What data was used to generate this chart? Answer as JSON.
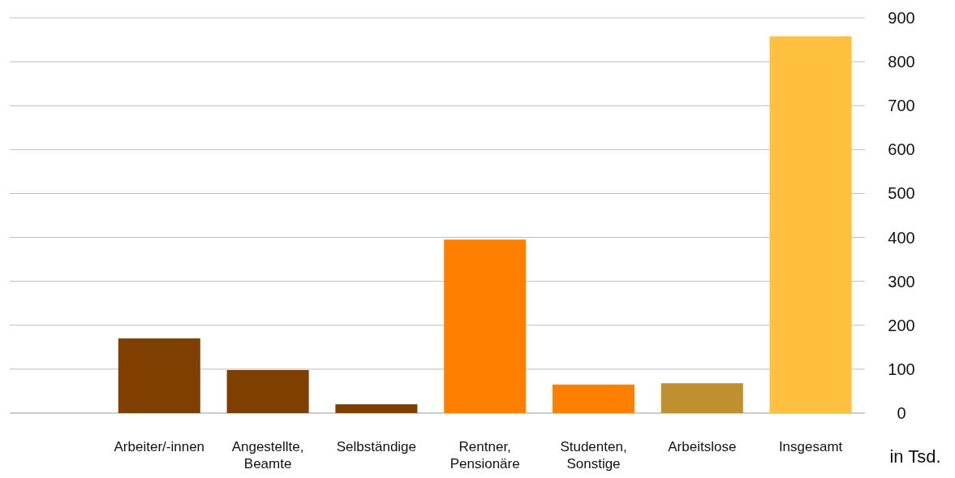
{
  "chart_data": {
    "type": "bar",
    "categories": [
      null,
      "Arbeiter/-innen",
      "Angestellte, Beamte",
      "Selbständige",
      "Rentner, Pensionäre",
      "Studenten, Sonstige",
      "Arbeitslose",
      "Insgesamt"
    ],
    "values": [
      null,
      170,
      98,
      20,
      395,
      65,
      68,
      858
    ],
    "colors": [
      null,
      "#7f3f00",
      "#7f3f00",
      "#7f3f00",
      "#ff8000",
      "#ff8000",
      "#c09030",
      "#ffc040"
    ],
    "ylabel": "in Tsd.",
    "ylim": [
      0,
      900
    ],
    "yticks": [
      0,
      100,
      200,
      300,
      400,
      500,
      600,
      700,
      800,
      900
    ],
    "grid": "y"
  }
}
